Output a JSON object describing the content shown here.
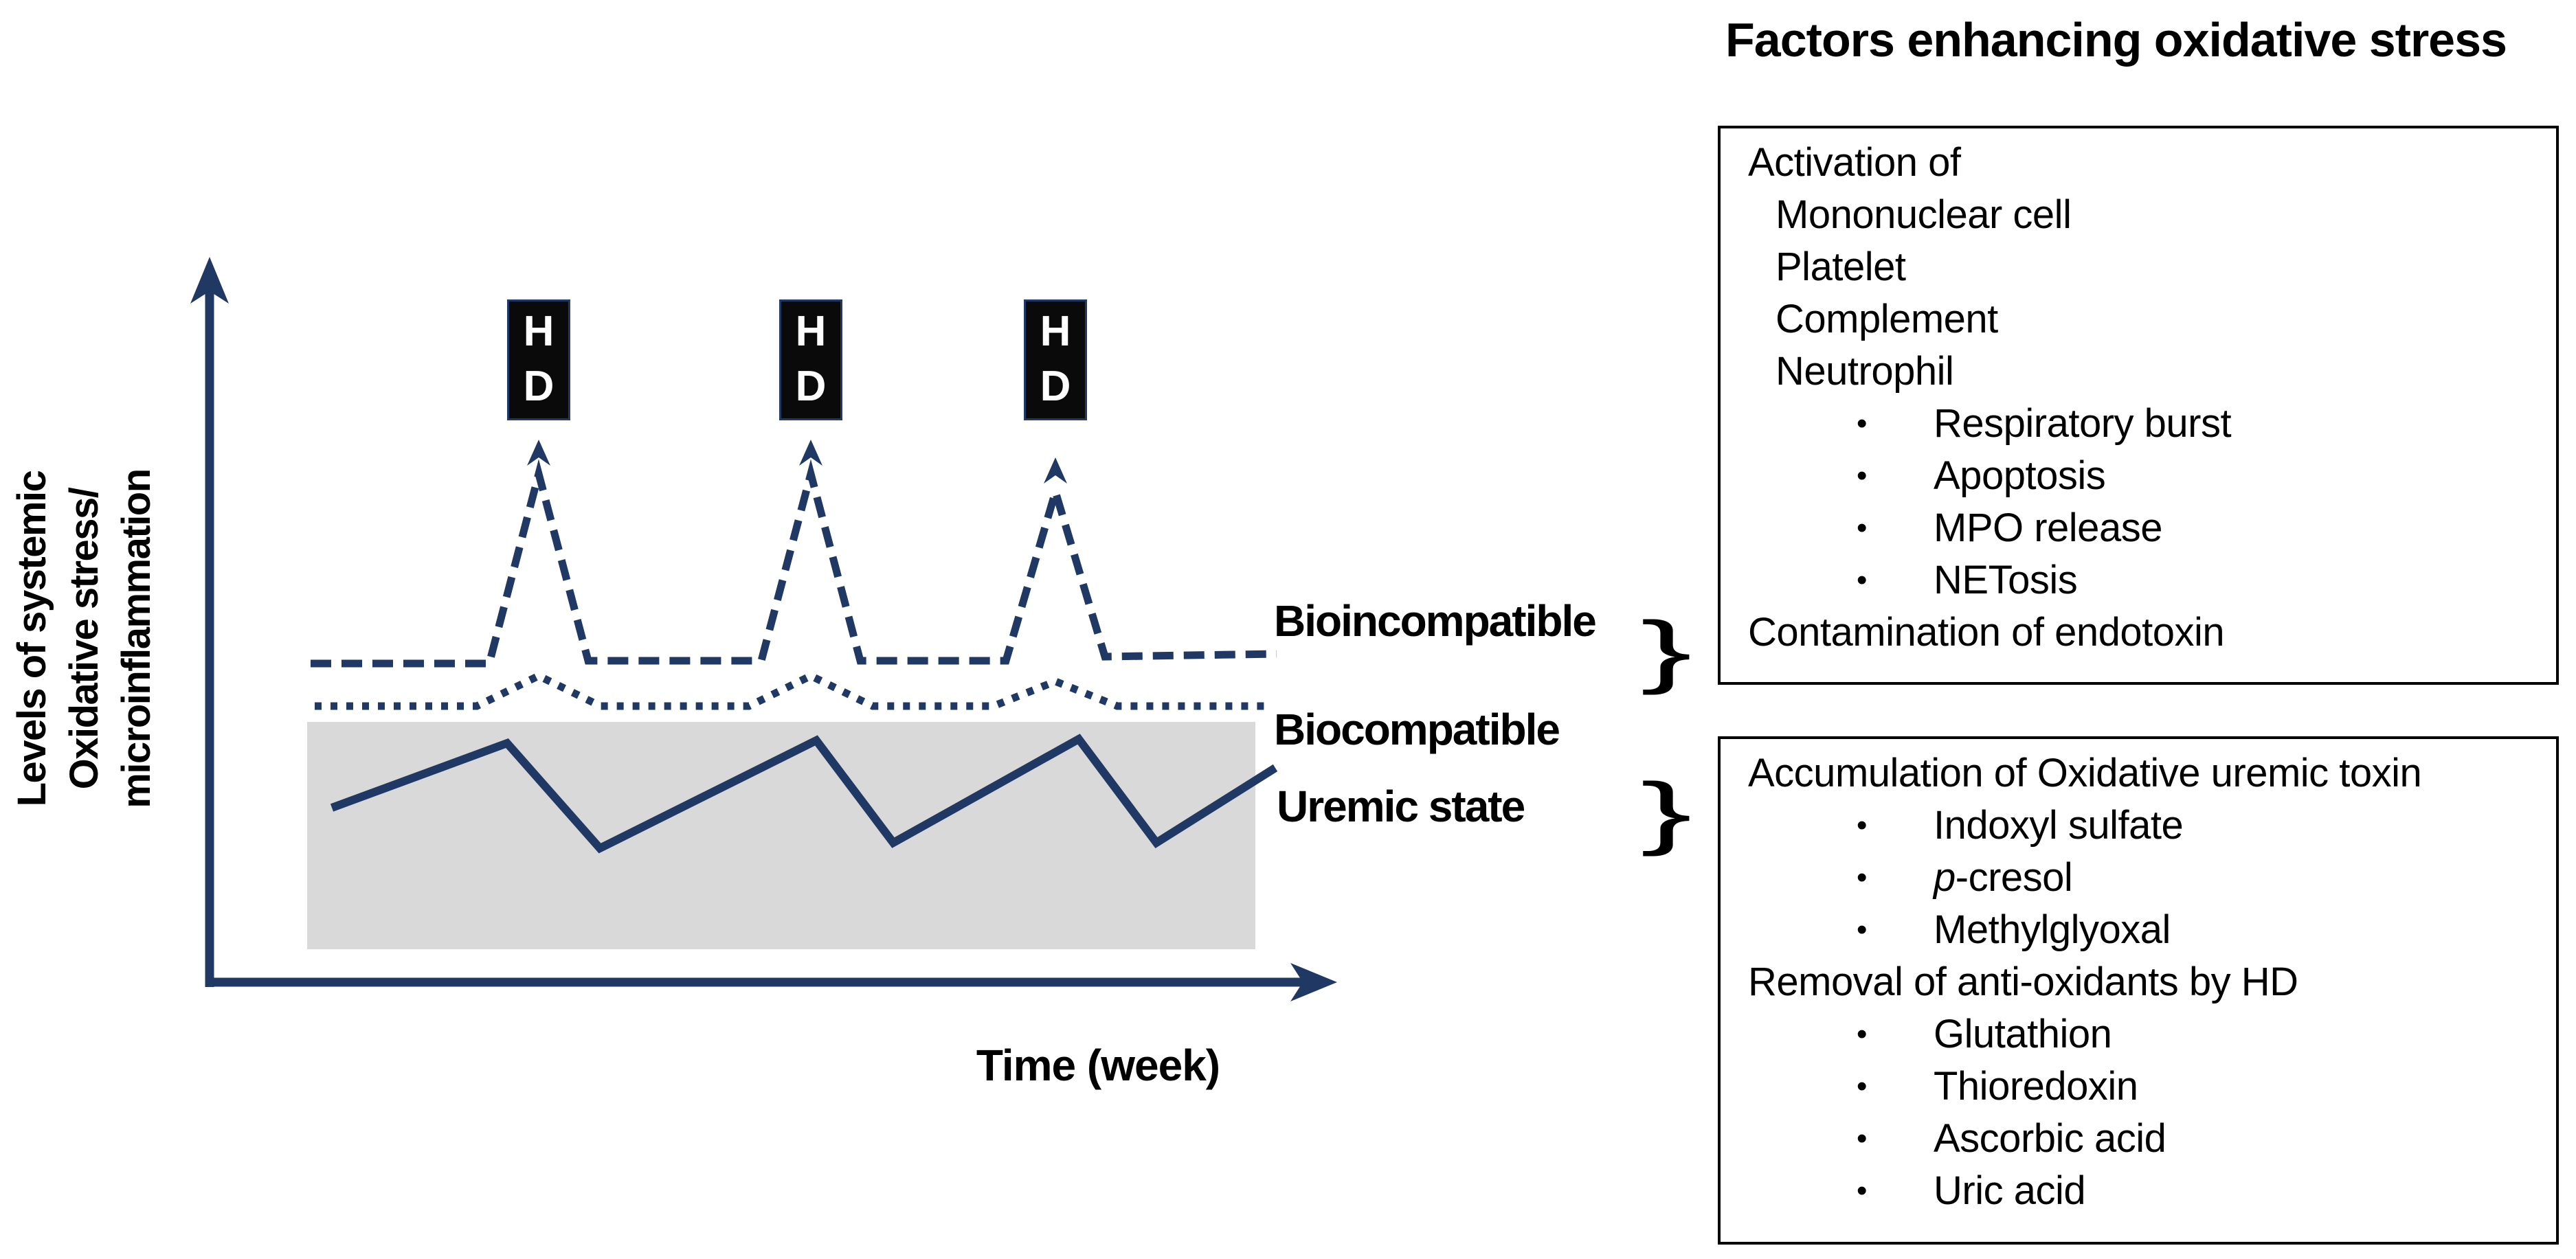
{
  "title": "Factors enhancing oxidative stress",
  "bullet_char": "•",
  "brace_char": "}",
  "chart": {
    "type": "line-schematic",
    "x_axis_label": "Time (week)",
    "y_axis_label_lines": [
      "Levels of systemic",
      "Oxidative stress/",
      "microinflammation"
    ],
    "hd_box_letters": [
      "H",
      "D"
    ],
    "hd_session_x": [
      784,
      1180,
      1536
    ],
    "colors": {
      "line": "#1f3864",
      "band": "#d9d9d9",
      "hd_fill": "#0a0a0a",
      "text": "#000000"
    },
    "series": [
      {
        "name": "Bioincompatible",
        "style": "dashed",
        "dash": "30 15",
        "width": 11,
        "points": [
          [
            452,
            966
          ],
          [
            712,
            966
          ],
          [
            784,
            690
          ],
          [
            856,
            962
          ],
          [
            1108,
            962
          ],
          [
            1180,
            690
          ],
          [
            1252,
            962
          ],
          [
            1464,
            962
          ],
          [
            1536,
            716
          ],
          [
            1608,
            956
          ],
          [
            1858,
            952
          ]
        ]
      },
      {
        "name": "Biocompatible",
        "style": "dotted",
        "dash": "10 13",
        "width": 11,
        "points": [
          [
            458,
            1028
          ],
          [
            694,
            1028
          ],
          [
            784,
            984
          ],
          [
            874,
            1028
          ],
          [
            1090,
            1028
          ],
          [
            1180,
            984
          ],
          [
            1270,
            1028
          ],
          [
            1446,
            1028
          ],
          [
            1536,
            992
          ],
          [
            1626,
            1028
          ],
          [
            1852,
            1028
          ]
        ]
      },
      {
        "name": "Uremic state",
        "style": "solid",
        "dash": "",
        "width": 12,
        "points": [
          [
            483,
            1176
          ],
          [
            738,
            1082
          ],
          [
            873,
            1235
          ],
          [
            1188,
            1078
          ],
          [
            1300,
            1227
          ],
          [
            1570,
            1076
          ],
          [
            1683,
            1227
          ],
          [
            1856,
            1118
          ]
        ]
      }
    ]
  },
  "curve_labels": [
    {
      "text": "Bioincompatible"
    },
    {
      "text": "Biocompatible"
    },
    {
      "text": "Uremic state"
    }
  ],
  "factor_boxes": [
    {
      "lines": [
        {
          "indent": "l0",
          "text": "Activation of"
        },
        {
          "indent": "l1",
          "text": "Mononuclear cell"
        },
        {
          "indent": "l1",
          "text": "Platelet"
        },
        {
          "indent": "l1",
          "text": "Complement"
        },
        {
          "indent": "l1",
          "text": "Neutrophil"
        },
        {
          "indent": "bullet",
          "text": "Respiratory burst"
        },
        {
          "indent": "bullet",
          "text": "Apoptosis"
        },
        {
          "indent": "bullet",
          "text": "MPO release"
        },
        {
          "indent": "bullet",
          "text": "NETosis"
        },
        {
          "indent": "l0",
          "text": "Contamination of endotoxin"
        }
      ]
    },
    {
      "lines": [
        {
          "indent": "l0",
          "text": "Accumulation of Oxidative uremic toxin"
        },
        {
          "indent": "bullet",
          "text": "Indoxyl sulfate"
        },
        {
          "indent": "bullet",
          "segments": [
            {
              "text": "p",
              "italic": true
            },
            {
              "text": "-cresol"
            }
          ]
        },
        {
          "indent": "bullet",
          "text": "Methylglyoxal"
        },
        {
          "indent": "l0",
          "text": "Removal of anti-oxidants by HD"
        },
        {
          "indent": "bullet",
          "text": "Glutathion"
        },
        {
          "indent": "bullet",
          "text": "Thioredoxin"
        },
        {
          "indent": "bullet",
          "text": "Ascorbic acid"
        },
        {
          "indent": "bullet",
          "text": "Uric acid"
        }
      ]
    }
  ]
}
